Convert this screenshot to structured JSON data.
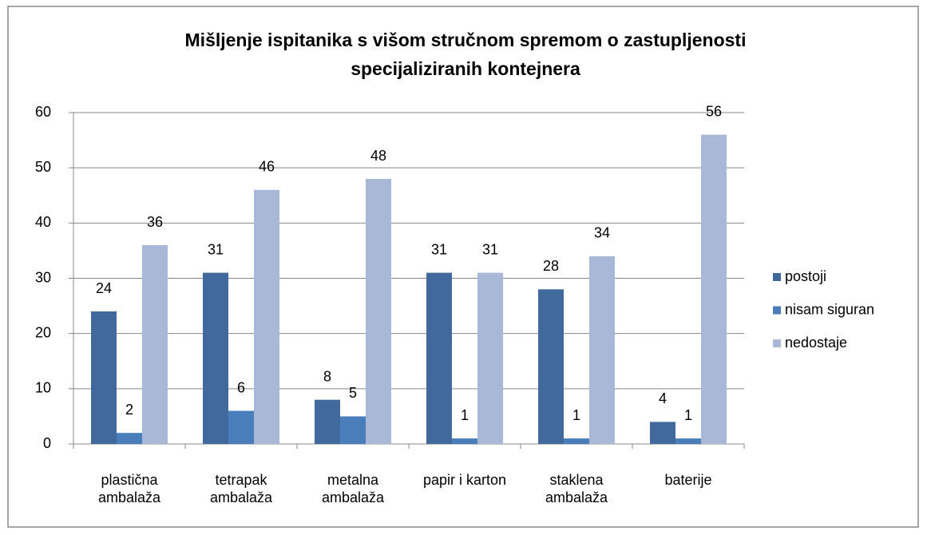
{
  "chart_data": {
    "type": "bar",
    "title": "Mišljenje ispitanika s višom stručnom spremom o zastupljenosti specijaliziranih kontejnera",
    "categories": [
      "plastična ambalaža",
      "tetrapak ambalaža",
      "metalna ambalaža",
      "papir i karton",
      "staklena ambalaža",
      "baterije"
    ],
    "series": [
      {
        "name": "postoji",
        "color": "#41699c",
        "values": [
          24,
          31,
          8,
          31,
          28,
          4
        ]
      },
      {
        "name": "nisam siguran",
        "color": "#4a7ebb",
        "values": [
          2,
          6,
          5,
          1,
          1,
          1
        ]
      },
      {
        "name": "nedostaje",
        "color": "#a9b8d7",
        "values": [
          36,
          46,
          48,
          31,
          34,
          56
        ]
      }
    ],
    "ylim": [
      0,
      60
    ],
    "yticks": [
      0,
      10,
      20,
      30,
      40,
      50,
      60
    ],
    "grid": true,
    "legend": "right"
  }
}
